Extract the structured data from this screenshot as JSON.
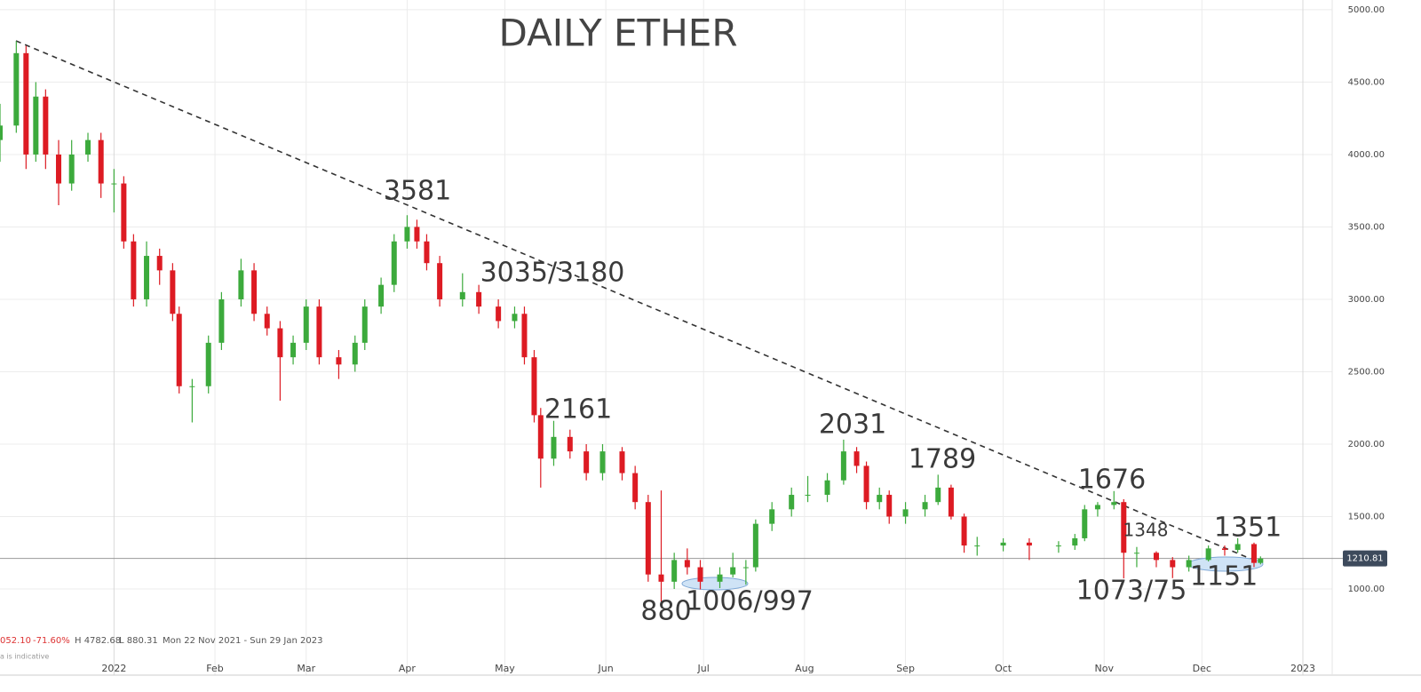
{
  "chart_data": {
    "type": "candlestick",
    "title": "DAILY ETHER",
    "x": [
      0,
      5,
      8,
      11,
      14,
      18,
      22,
      27,
      31,
      35,
      38,
      41,
      45,
      49,
      53,
      55,
      59,
      64,
      68,
      74,
      78,
      82,
      86,
      90,
      94,
      98,
      104,
      109,
      112,
      117,
      121,
      125,
      128,
      131,
      135,
      142,
      147,
      153,
      158,
      161,
      164,
      166,
      170,
      175,
      180,
      185,
      191,
      195,
      199,
      203,
      207,
      211,
      215,
      221,
      225,
      229,
      232,
      237,
      243,
      248,
      254,
      259,
      263,
      266,
      270,
      273,
      278,
      284,
      288,
      292,
      296,
      300,
      308,
      316,
      325,
      330,
      333,
      337,
      342,
      345,
      349,
      355,
      360,
      365,
      371,
      376,
      380,
      385,
      387
    ],
    "open": [
      4100,
      4200,
      4700,
      4000,
      4400,
      4000,
      3800,
      4000,
      4100,
      3800,
      3800,
      3400,
      3000,
      3300,
      3200,
      2900,
      2400,
      2400,
      2700,
      3000,
      3200,
      2900,
      2800,
      2600,
      2700,
      2950,
      2600,
      2550,
      2700,
      2950,
      3100,
      3400,
      3500,
      3400,
      3250,
      3000,
      3050,
      2950,
      2850,
      2900,
      2600,
      2200,
      1900,
      2050,
      1950,
      1800,
      1950,
      1800,
      1600,
      1100,
      1050,
      1200,
      1150,
      1050,
      1100,
      1150,
      1150,
      1450,
      1550,
      1650,
      1650,
      1750,
      1950,
      1850,
      1600,
      1650,
      1500,
      1550,
      1600,
      1700,
      1500,
      1300,
      1300,
      1320,
      1300,
      1300,
      1350,
      1550,
      1580,
      1600,
      1250,
      1250,
      1200,
      1150,
      1200,
      1280,
      1270,
      1310,
      1180
    ],
    "high": [
      4350,
      4782.68,
      4750,
      4500,
      4450,
      4100,
      4100,
      4150,
      4150,
      3900,
      3850,
      3450,
      3400,
      3350,
      3250,
      2950,
      2450,
      2750,
      3050,
      3280,
      3250,
      2950,
      2850,
      2750,
      3000,
      3000,
      2650,
      2750,
      3000,
      3150,
      3450,
      3581,
      3550,
      3450,
      3300,
      3180,
      3100,
      3000,
      2950,
      2950,
      2650,
      2250,
      2161,
      2100,
      2000,
      2000,
      1980,
      1850,
      1650,
      1680,
      1250,
      1280,
      1200,
      1150,
      1250,
      1200,
      1480,
      1600,
      1700,
      1780,
      1800,
      2031,
      1980,
      1880,
      1700,
      1680,
      1600,
      1650,
      1789,
      1720,
      1520,
      1360,
      1350,
      1350,
      1330,
      1380,
      1580,
      1600,
      1676,
      1620,
      1290,
      1260,
      1220,
      1230,
      1300,
      1300,
      1351,
      1320,
      1225
    ],
    "low": [
      3950,
      4150,
      3900,
      3950,
      3900,
      3650,
      3750,
      3950,
      3700,
      3600,
      3350,
      2950,
      2950,
      3100,
      2850,
      2350,
      2150,
      2350,
      2650,
      2950,
      2850,
      2750,
      2300,
      2550,
      2650,
      2550,
      2450,
      2500,
      2650,
      2900,
      3050,
      3350,
      3350,
      3200,
      2950,
      2950,
      2900,
      2800,
      2800,
      2550,
      2150,
      1700,
      1850,
      1900,
      1750,
      1750,
      1750,
      1550,
      1050,
      880.31,
      1000,
      1100,
      997,
      1006,
      1080,
      1030,
      1120,
      1400,
      1500,
      1600,
      1600,
      1720,
      1800,
      1550,
      1550,
      1450,
      1450,
      1500,
      1580,
      1480,
      1250,
      1230,
      1260,
      1200,
      1250,
      1270,
      1330,
      1500,
      1550,
      1073,
      1150,
      1150,
      1075,
      1120,
      1190,
      1230,
      1250,
      1151,
      1170
    ],
    "close": [
      4200,
      4700,
      4000,
      4400,
      4000,
      3800,
      4000,
      4100,
      3800,
      3800,
      3400,
      3000,
      3300,
      3200,
      2900,
      2400,
      2400,
      2700,
      3000,
      3200,
      2900,
      2800,
      2600,
      2700,
      2950,
      2600,
      2550,
      2700,
      2950,
      3100,
      3400,
      3500,
      3400,
      3250,
      3000,
      3050,
      2950,
      2850,
      2900,
      2600,
      2200,
      1900,
      2050,
      1950,
      1800,
      1950,
      1800,
      1600,
      1100,
      1050,
      1200,
      1150,
      1050,
      1100,
      1150,
      1150,
      1450,
      1550,
      1650,
      1650,
      1750,
      1950,
      1850,
      1600,
      1650,
      1500,
      1550,
      1600,
      1700,
      1500,
      1300,
      1300,
      1320,
      1300,
      1300,
      1350,
      1550,
      1580,
      1600,
      1250,
      1250,
      1200,
      1150,
      1200,
      1280,
      1270,
      1310,
      1180,
      1210
    ],
    "up_color": "#3caa3c",
    "down_color": "#dd1b23",
    "xlim": [
      0,
      409
    ],
    "xticks": [
      {
        "value": 35,
        "label": "2022"
      },
      {
        "value": 66,
        "label": "Feb"
      },
      {
        "value": 94,
        "label": "Mar"
      },
      {
        "value": 125,
        "label": "Apr"
      },
      {
        "value": 155,
        "label": "May"
      },
      {
        "value": 186,
        "label": "Jun"
      },
      {
        "value": 216,
        "label": "Jul"
      },
      {
        "value": 247,
        "label": "Aug"
      },
      {
        "value": 278,
        "label": "Sep"
      },
      {
        "value": 308,
        "label": "Oct"
      },
      {
        "value": 339,
        "label": "Nov"
      },
      {
        "value": 369,
        "label": "Dec"
      },
      {
        "value": 400,
        "label": "2023"
      }
    ],
    "ylim": [
      405,
      5067
    ],
    "yticks": [
      {
        "value": 1000,
        "label": "1000.00"
      },
      {
        "value": 1500,
        "label": "1500.00"
      },
      {
        "value": 2000,
        "label": "2000.00"
      },
      {
        "value": 2500,
        "label": "2500.00"
      },
      {
        "value": 3000,
        "label": "3000.00"
      },
      {
        "value": 3500,
        "label": "3500.00"
      },
      {
        "value": 4000,
        "label": "4000.00"
      },
      {
        "value": 4500,
        "label": "4500.00"
      },
      {
        "value": 5000,
        "label": "5000.00"
      }
    ],
    "grid": true,
    "last_price": {
      "value": 1210.81,
      "label": "1210.81"
    },
    "annotations": [
      "3581",
      "3035/3180",
      "2161",
      "2031",
      "1789",
      "1676",
      "1348",
      "1351",
      "880",
      "1006/997",
      "1073/75",
      "1151"
    ],
    "info": {
      "close": "052.10",
      "change": "-71.60%",
      "high": "H 4782.68",
      "low": "L 880.31",
      "range": "Mon 22 Nov 2021 - Sun 29 Jan 2023",
      "note": "a is indicative"
    }
  }
}
